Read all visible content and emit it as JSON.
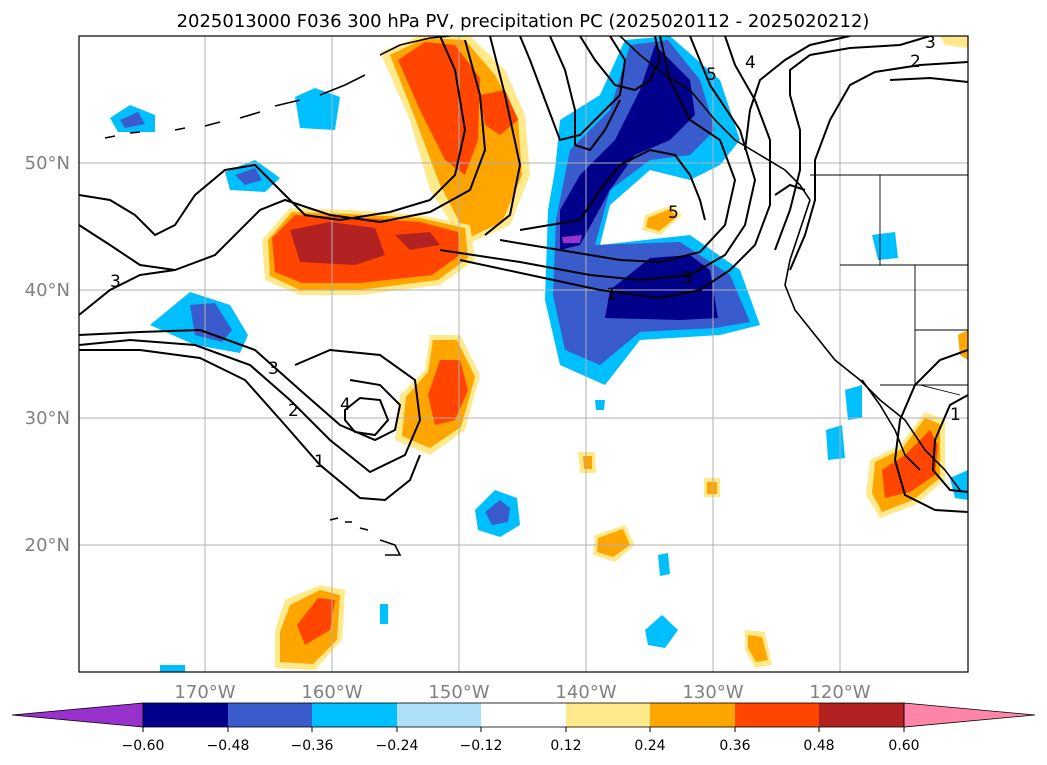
{
  "title": "2025013000 F036 300 hPa PV, precipitation PC (2025020112 - 2025020212)",
  "map": {
    "lon_range": [
      -180,
      -110
    ],
    "lat_range": [
      10,
      60
    ],
    "lon_ticks": [
      "170°W",
      "160°W",
      "150°W",
      "140°W",
      "130°W",
      "120°W"
    ],
    "lat_ticks": [
      "50°N",
      "40°N",
      "30°N",
      "20°N"
    ],
    "gridlines": true
  },
  "contour_labels": [
    "3",
    "3",
    "2",
    "1",
    "4",
    "1",
    "3",
    "5",
    "5",
    "4",
    "2",
    "3",
    "1"
  ],
  "colorbar": {
    "tick_labels": [
      "−0.60",
      "−0.48",
      "−0.36",
      "−0.24",
      "−0.12",
      "0.12",
      "0.24",
      "0.36",
      "0.48",
      "0.60"
    ],
    "colors": [
      "#9932cc",
      "#00008b",
      "#3a5bcc",
      "#00bfff",
      "#ade0f8",
      "#ffffff",
      "#ffe98a",
      "#ffa500",
      "#ff4500",
      "#b22222",
      "#ff85a8"
    ]
  },
  "palette": {
    "dark_blue": "#00008b",
    "mid_blue": "#3a5bcc",
    "light_blue": "#00bfff",
    "pale_yellow": "#ffe98a",
    "orange": "#ffa500",
    "red_orange": "#ff4500",
    "dark_red": "#b22222"
  }
}
